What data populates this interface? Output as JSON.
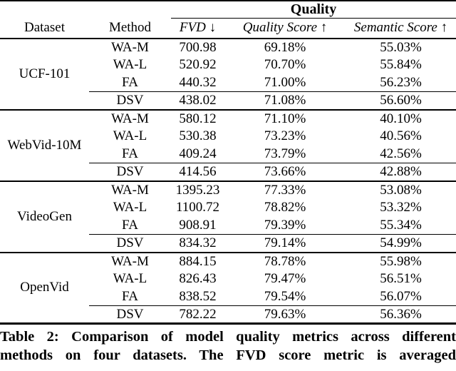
{
  "table": {
    "quality_span_header": "Quality",
    "headers": {
      "dataset": "Dataset",
      "method": "Method",
      "fvd": "FVD ↓",
      "quality_score": "Quality Score ↑",
      "semantic_score": "Semantic Score ↑"
    },
    "blocks": [
      {
        "dataset": "UCF-101",
        "rows": [
          {
            "method": "WA-M",
            "fvd": "700.98",
            "quality_score": "69.18%",
            "semantic_score": "55.03%"
          },
          {
            "method": "WA-L",
            "fvd": "520.92",
            "quality_score": "70.70%",
            "semantic_score": "55.84%"
          },
          {
            "method": "FA",
            "fvd": "440.32",
            "quality_score": "71.00%",
            "semantic_score": "56.23%"
          },
          {
            "method": "DSV",
            "fvd": "438.02",
            "quality_score": "71.08%",
            "semantic_score": "56.60%"
          }
        ]
      },
      {
        "dataset": "WebVid-10M",
        "rows": [
          {
            "method": "WA-M",
            "fvd": "580.12",
            "quality_score": "71.10%",
            "semantic_score": "40.10%"
          },
          {
            "method": "WA-L",
            "fvd": "530.38",
            "quality_score": "73.23%",
            "semantic_score": "40.56%"
          },
          {
            "method": "FA",
            "fvd": "409.24",
            "quality_score": "73.79%",
            "semantic_score": "42.56%"
          },
          {
            "method": "DSV",
            "fvd": "414.56",
            "quality_score": "73.66%",
            "semantic_score": "42.88%"
          }
        ]
      },
      {
        "dataset": "VideoGen",
        "rows": [
          {
            "method": "WA-M",
            "fvd": "1395.23",
            "quality_score": "77.33%",
            "semantic_score": "53.08%"
          },
          {
            "method": "WA-L",
            "fvd": "1100.72",
            "quality_score": "78.82%",
            "semantic_score": "53.32%"
          },
          {
            "method": "FA",
            "fvd": "908.91",
            "quality_score": "79.39%",
            "semantic_score": "55.34%"
          },
          {
            "method": "DSV",
            "fvd": "834.32",
            "quality_score": "79.14%",
            "semantic_score": "54.99%"
          }
        ]
      },
      {
        "dataset": "OpenVid",
        "rows": [
          {
            "method": "WA-M",
            "fvd": "884.15",
            "quality_score": "78.78%",
            "semantic_score": "55.98%"
          },
          {
            "method": "WA-L",
            "fvd": "826.43",
            "quality_score": "79.47%",
            "semantic_score": "56.51%"
          },
          {
            "method": "FA",
            "fvd": "838.52",
            "quality_score": "79.54%",
            "semantic_score": "56.07%"
          },
          {
            "method": "DSV",
            "fvd": "782.22",
            "quality_score": "79.63%",
            "semantic_score": "56.36%"
          }
        ]
      }
    ]
  },
  "caption": {
    "line1": "Table 2: Comparison of model quality metrics across different",
    "line2": "methods on four datasets. The FVD score metric is averaged"
  }
}
